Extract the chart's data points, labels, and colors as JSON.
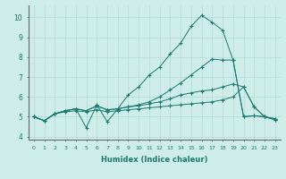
{
  "xlabel": "Humidex (Indice chaleur)",
  "bg_color": "#ceecea",
  "grid_color": "#b2d8d6",
  "line_color": "#1a7a6e",
  "xlim": [
    -0.5,
    23.5
  ],
  "ylim": [
    3.85,
    10.6
  ],
  "yticks": [
    4,
    5,
    6,
    7,
    8,
    9,
    10
  ],
  "xticks": [
    0,
    1,
    2,
    3,
    4,
    5,
    6,
    7,
    8,
    9,
    10,
    11,
    12,
    13,
    14,
    15,
    16,
    17,
    18,
    19,
    20,
    21,
    22,
    23
  ],
  "line1_x": [
    0,
    1,
    2,
    3,
    4,
    5,
    6,
    7,
    8,
    9,
    10,
    11,
    12,
    13,
    14,
    15,
    16,
    17,
    18,
    19,
    20,
    21,
    22,
    23
  ],
  "line1_y": [
    5.0,
    4.8,
    5.15,
    5.25,
    5.3,
    5.25,
    5.35,
    5.25,
    5.3,
    5.35,
    5.4,
    5.45,
    5.5,
    5.55,
    5.6,
    5.65,
    5.7,
    5.75,
    5.85,
    6.0,
    6.5,
    5.5,
    5.0,
    4.9
  ],
  "line2_x": [
    0,
    1,
    2,
    3,
    4,
    5,
    6,
    7,
    8,
    9,
    10,
    11,
    12,
    13,
    14,
    15,
    16,
    17,
    18,
    19,
    20,
    21,
    22,
    23
  ],
  "line2_y": [
    5.0,
    4.8,
    5.15,
    5.3,
    5.4,
    5.3,
    5.55,
    5.35,
    5.4,
    5.5,
    5.55,
    5.65,
    5.75,
    5.9,
    6.1,
    6.2,
    6.3,
    6.35,
    6.5,
    6.65,
    6.5,
    5.5,
    5.0,
    4.9
  ],
  "line3_x": [
    0,
    1,
    2,
    3,
    4,
    5,
    6,
    7,
    8,
    9,
    10,
    11,
    12,
    13,
    14,
    15,
    16,
    17,
    18,
    19,
    20,
    21,
    22,
    23
  ],
  "line3_y": [
    5.0,
    4.8,
    5.15,
    5.3,
    5.4,
    4.45,
    5.6,
    4.75,
    5.4,
    6.1,
    6.5,
    7.1,
    7.5,
    8.15,
    8.7,
    9.55,
    10.1,
    9.75,
    9.35,
    7.85,
    5.0,
    5.05,
    5.0,
    4.85
  ],
  "line4_x": [
    0,
    1,
    2,
    3,
    4,
    5,
    6,
    7,
    8,
    9,
    10,
    11,
    12,
    13,
    14,
    15,
    16,
    17,
    18,
    19,
    20,
    21,
    22,
    23
  ],
  "line4_y": [
    5.0,
    4.8,
    5.15,
    5.3,
    5.4,
    5.3,
    5.55,
    5.35,
    5.4,
    5.5,
    5.6,
    5.75,
    6.0,
    6.35,
    6.7,
    7.1,
    7.5,
    7.9,
    7.85,
    7.85,
    5.0,
    5.05,
    5.0,
    4.85
  ]
}
